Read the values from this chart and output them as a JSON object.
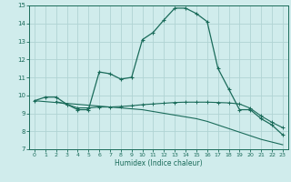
{
  "title": "",
  "xlabel": "Humidex (Indice chaleur)",
  "ylabel": "",
  "bg_color": "#d0ecec",
  "grid_color": "#b0d4d4",
  "line_color": "#1a6b5a",
  "xlim": [
    -0.5,
    23.5
  ],
  "ylim": [
    7,
    15
  ],
  "yticks": [
    7,
    8,
    9,
    10,
    11,
    12,
    13,
    14,
    15
  ],
  "xticks": [
    0,
    1,
    2,
    3,
    4,
    5,
    6,
    7,
    8,
    9,
    10,
    11,
    12,
    13,
    14,
    15,
    16,
    17,
    18,
    19,
    20,
    21,
    22,
    23
  ],
  "line1_x": [
    0,
    1,
    2,
    3,
    4,
    5,
    6,
    7,
    8,
    9,
    10,
    11,
    12,
    13,
    14,
    15,
    16,
    17,
    18,
    19,
    20,
    21,
    22,
    23
  ],
  "line1_y": [
    9.7,
    9.9,
    9.9,
    9.5,
    9.2,
    9.2,
    11.3,
    11.2,
    10.9,
    11.0,
    13.1,
    13.5,
    14.2,
    14.85,
    14.85,
    14.55,
    14.1,
    11.5,
    10.35,
    9.2,
    9.2,
    8.7,
    8.35,
    7.8
  ],
  "line2_x": [
    2,
    3,
    4,
    5,
    6,
    7,
    8,
    9,
    10,
    11,
    12,
    13,
    14,
    15,
    16,
    17,
    18,
    19,
    20,
    21,
    22,
    23
  ],
  "line2_y": [
    9.65,
    9.5,
    9.3,
    9.3,
    9.35,
    9.35,
    9.38,
    9.42,
    9.48,
    9.52,
    9.56,
    9.6,
    9.62,
    9.62,
    9.62,
    9.6,
    9.58,
    9.52,
    9.28,
    8.85,
    8.5,
    8.2
  ],
  "line3_x": [
    0,
    1,
    2,
    3,
    4,
    5,
    6,
    7,
    8,
    9,
    10,
    11,
    12,
    13,
    14,
    15,
    16,
    17,
    18,
    19,
    20,
    21,
    22,
    23
  ],
  "line3_y": [
    9.7,
    9.65,
    9.6,
    9.55,
    9.5,
    9.45,
    9.4,
    9.35,
    9.3,
    9.25,
    9.2,
    9.1,
    9.0,
    8.9,
    8.8,
    8.7,
    8.55,
    8.35,
    8.15,
    7.95,
    7.75,
    7.55,
    7.4,
    7.25
  ]
}
